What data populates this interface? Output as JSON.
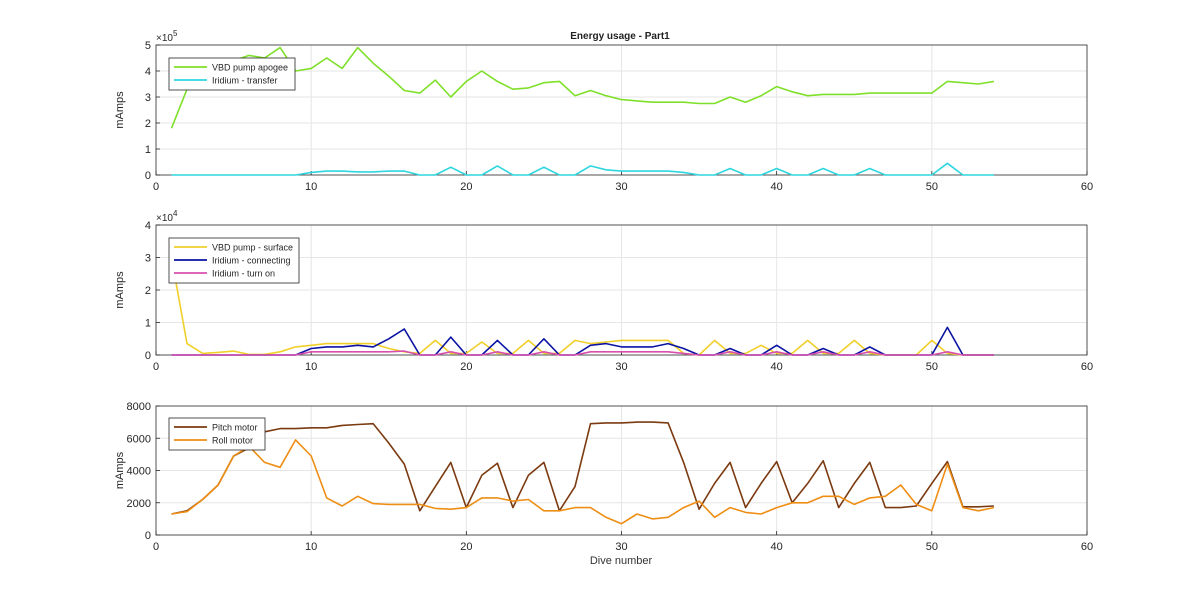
{
  "figure": {
    "title": "Energy usage - Part1",
    "xlabel": "Dive number"
  },
  "chart_data": [
    {
      "type": "line",
      "title": "Energy usage - Part1",
      "xlabel": "",
      "ylabel": "mAmps",
      "xlim": [
        0,
        60
      ],
      "ylim": [
        0,
        5
      ],
      "xticks": [
        0,
        10,
        20,
        30,
        40,
        50,
        60
      ],
      "yticks": [
        0,
        1,
        2,
        3,
        4,
        5
      ],
      "exponent_label": "×10",
      "exponent": "5",
      "grid": true,
      "legend": "top-left",
      "series": [
        {
          "name": "VBD pump apogee",
          "color": "#7fe02a",
          "x": [
            1,
            2,
            3,
            4,
            5,
            6,
            7,
            8,
            9,
            10,
            11,
            12,
            13,
            14,
            15,
            16,
            17,
            18,
            19,
            20,
            21,
            22,
            23,
            24,
            25,
            26,
            27,
            28,
            29,
            30,
            31,
            32,
            33,
            34,
            35,
            36,
            37,
            38,
            39,
            40,
            41,
            42,
            43,
            44,
            45,
            46,
            47,
            48,
            49,
            50,
            51,
            52,
            53,
            54
          ],
          "y": [
            1.8,
            3.3,
            3.7,
            4.0,
            4.4,
            4.6,
            4.5,
            4.9,
            4.0,
            4.1,
            4.5,
            4.1,
            4.9,
            4.3,
            3.8,
            3.25,
            3.15,
            3.65,
            3.0,
            3.6,
            4.0,
            3.6,
            3.3,
            3.35,
            3.55,
            3.6,
            3.05,
            3.25,
            3.05,
            2.9,
            2.85,
            2.8,
            2.8,
            2.8,
            2.75,
            2.75,
            3.0,
            2.8,
            3.05,
            3.4,
            3.2,
            3.05,
            3.1,
            3.1,
            3.1,
            3.15,
            3.15,
            3.15,
            3.15,
            3.15,
            3.6,
            3.55,
            3.5,
            3.6
          ]
        },
        {
          "name": "Iridium - transfer",
          "color": "#2fd6df",
          "x": [
            1,
            2,
            3,
            4,
            5,
            6,
            7,
            8,
            9,
            10,
            11,
            12,
            13,
            14,
            15,
            16,
            17,
            18,
            19,
            20,
            21,
            22,
            23,
            24,
            25,
            26,
            27,
            28,
            29,
            30,
            31,
            32,
            33,
            34,
            35,
            36,
            37,
            38,
            39,
            40,
            41,
            42,
            43,
            44,
            45,
            46,
            47,
            48,
            49,
            50,
            51,
            52,
            53,
            54
          ],
          "y": [
            0,
            0,
            0,
            0,
            0,
            0,
            0,
            0,
            0,
            0.1,
            0.15,
            0.15,
            0.12,
            0.12,
            0.15,
            0.15,
            0,
            0,
            0.3,
            0,
            0,
            0.35,
            0,
            0,
            0.3,
            0,
            0,
            0.35,
            0.2,
            0.15,
            0.15,
            0.15,
            0.15,
            0.1,
            0,
            0,
            0.25,
            0,
            0,
            0.25,
            0,
            0,
            0.25,
            0,
            0,
            0.25,
            0,
            0,
            0,
            0,
            0.45,
            0,
            0,
            0
          ]
        }
      ]
    },
    {
      "type": "line",
      "title": "",
      "xlabel": "",
      "ylabel": "mAmps",
      "xlim": [
        0,
        60
      ],
      "ylim": [
        0,
        4
      ],
      "xticks": [
        0,
        10,
        20,
        30,
        40,
        50,
        60
      ],
      "yticks": [
        0,
        1,
        2,
        3,
        4
      ],
      "exponent_label": "×10",
      "exponent": "4",
      "grid": true,
      "legend": "top-left",
      "series": [
        {
          "name": "VBD pump - surface",
          "color": "#f1cf2a",
          "x": [
            1,
            2,
            3,
            4,
            5,
            6,
            7,
            8,
            9,
            10,
            11,
            12,
            13,
            14,
            15,
            16,
            17,
            18,
            19,
            20,
            21,
            22,
            23,
            24,
            25,
            26,
            27,
            28,
            29,
            30,
            31,
            32,
            33,
            34,
            35,
            36,
            37,
            38,
            39,
            40,
            41,
            42,
            43,
            44,
            45,
            46,
            47,
            48,
            49,
            50,
            51,
            52,
            53,
            54
          ],
          "y": [
            3.0,
            0.35,
            0.05,
            0.08,
            0.12,
            0.02,
            0.02,
            0.1,
            0.25,
            0.3,
            0.35,
            0.35,
            0.35,
            0.35,
            0.2,
            0.1,
            0.05,
            0.45,
            0.05,
            0.05,
            0.4,
            0.05,
            0.05,
            0.45,
            0.05,
            0.05,
            0.45,
            0.35,
            0.4,
            0.45,
            0.45,
            0.45,
            0.45,
            0.05,
            0,
            0.45,
            0.05,
            0.05,
            0.3,
            0.05,
            0.05,
            0.45,
            0.05,
            0.05,
            0.45,
            0.05,
            0,
            0,
            0,
            0.45,
            0.05,
            0,
            0,
            0
          ]
        },
        {
          "name": "Iridium - connecting",
          "color": "#0a13a2",
          "x": [
            1,
            2,
            3,
            4,
            5,
            6,
            7,
            8,
            9,
            10,
            11,
            12,
            13,
            14,
            15,
            16,
            17,
            18,
            19,
            20,
            21,
            22,
            23,
            24,
            25,
            26,
            27,
            28,
            29,
            30,
            31,
            32,
            33,
            34,
            35,
            36,
            37,
            38,
            39,
            40,
            41,
            42,
            43,
            44,
            45,
            46,
            47,
            48,
            49,
            50,
            51,
            52,
            53,
            54
          ],
          "y": [
            0,
            0,
            0,
            0,
            0,
            0,
            0,
            0,
            0,
            0.2,
            0.25,
            0.25,
            0.3,
            0.25,
            0.5,
            0.8,
            0,
            0,
            0.55,
            0,
            0,
            0.45,
            0,
            0,
            0.5,
            0,
            0,
            0.3,
            0.35,
            0.25,
            0.25,
            0.25,
            0.35,
            0.2,
            0,
            0,
            0.2,
            0,
            0,
            0.3,
            0,
            0,
            0.2,
            0,
            0,
            0.25,
            0,
            0,
            0,
            0,
            0.85,
            0,
            0,
            0
          ]
        },
        {
          "name": "Iridium - turn on",
          "color": "#d84fb0",
          "x": [
            1,
            2,
            3,
            4,
            5,
            6,
            7,
            8,
            9,
            10,
            11,
            12,
            13,
            14,
            15,
            16,
            17,
            18,
            19,
            20,
            21,
            22,
            23,
            24,
            25,
            26,
            27,
            28,
            29,
            30,
            31,
            32,
            33,
            34,
            35,
            36,
            37,
            38,
            39,
            40,
            41,
            42,
            43,
            44,
            45,
            46,
            47,
            48,
            49,
            50,
            51,
            52,
            53,
            54
          ],
          "y": [
            0,
            0,
            0,
            0,
            0,
            0,
            0,
            0,
            0,
            0.1,
            0.1,
            0.1,
            0.1,
            0.1,
            0.1,
            0.12,
            0,
            0,
            0.1,
            0,
            0,
            0.1,
            0,
            0,
            0.1,
            0,
            0,
            0.1,
            0.1,
            0.1,
            0.1,
            0.1,
            0.1,
            0.05,
            0,
            0,
            0.1,
            0,
            0,
            0.1,
            0,
            0,
            0.1,
            0,
            0,
            0.1,
            0,
            0,
            0,
            0,
            0.1,
            0,
            0,
            0
          ]
        }
      ]
    },
    {
      "type": "line",
      "title": "",
      "xlabel": "Dive number",
      "ylabel": "mAmps",
      "xlim": [
        0,
        60
      ],
      "ylim": [
        0,
        8000
      ],
      "xticks": [
        0,
        10,
        20,
        30,
        40,
        50,
        60
      ],
      "yticks": [
        0,
        2000,
        4000,
        6000,
        8000
      ],
      "exponent_label": "",
      "exponent": "",
      "grid": true,
      "legend": "top-left",
      "series": [
        {
          "name": "Pitch motor",
          "color": "#7b3a10",
          "x": [
            1,
            2,
            3,
            4,
            5,
            6,
            7,
            8,
            9,
            10,
            11,
            12,
            13,
            14,
            15,
            16,
            17,
            18,
            19,
            20,
            21,
            22,
            23,
            24,
            25,
            26,
            27,
            28,
            29,
            30,
            31,
            32,
            33,
            34,
            35,
            36,
            37,
            38,
            39,
            40,
            41,
            42,
            43,
            44,
            45,
            46,
            47,
            48,
            49,
            50,
            51,
            52,
            53,
            54
          ],
          "y": [
            1300,
            1500,
            2200,
            3100,
            4900,
            5400,
            6400,
            6600,
            6600,
            6650,
            6650,
            6800,
            6850,
            6900,
            5700,
            4400,
            1500,
            3000,
            4500,
            1700,
            3700,
            4450,
            1700,
            3700,
            4500,
            1500,
            3000,
            6900,
            6950,
            6950,
            7000,
            7000,
            6950,
            4500,
            1600,
            3200,
            4500,
            1700,
            3200,
            4550,
            2000,
            3200,
            4600,
            1700,
            3200,
            4500,
            1700,
            1700,
            1800,
            3200,
            4550,
            1750,
            1750,
            1800
          ]
        },
        {
          "name": "Roll motor",
          "color": "#ee8e14",
          "x": [
            1,
            2,
            3,
            4,
            5,
            6,
            7,
            8,
            9,
            10,
            11,
            12,
            13,
            14,
            15,
            16,
            17,
            18,
            19,
            20,
            21,
            22,
            23,
            24,
            25,
            26,
            27,
            28,
            29,
            30,
            31,
            32,
            33,
            34,
            35,
            36,
            37,
            38,
            39,
            40,
            41,
            42,
            43,
            44,
            45,
            46,
            47,
            48,
            49,
            50,
            51,
            52,
            53,
            54
          ],
          "y": [
            1300,
            1450,
            2200,
            3100,
            4900,
            5500,
            4500,
            4200,
            5900,
            4900,
            2300,
            1800,
            2400,
            1950,
            1900,
            1900,
            1900,
            1650,
            1600,
            1700,
            2300,
            2300,
            2100,
            2200,
            1500,
            1500,
            1700,
            1700,
            1100,
            700,
            1300,
            1000,
            1100,
            1700,
            2100,
            1100,
            1700,
            1400,
            1300,
            1700,
            2000,
            2000,
            2400,
            2400,
            1900,
            2300,
            2400,
            3100,
            1900,
            1500,
            4400,
            1700,
            1500,
            1700
          ]
        }
      ]
    }
  ]
}
